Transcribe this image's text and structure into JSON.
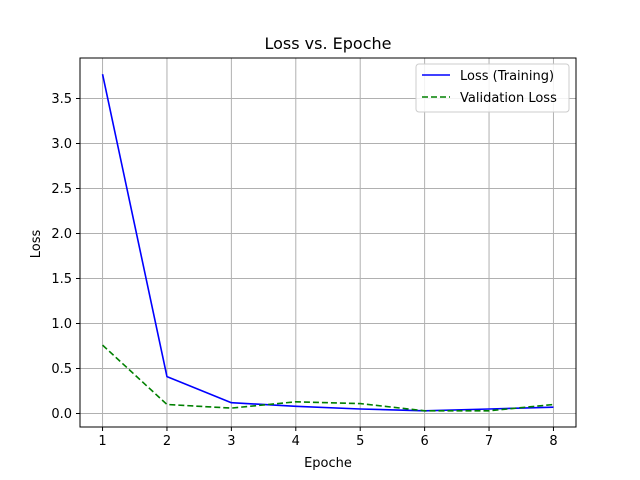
{
  "chart_data": {
    "type": "line",
    "title": "Loss vs. Epoche",
    "xlabel": "Epoche",
    "ylabel": "Loss",
    "x": [
      1,
      2,
      3,
      4,
      5,
      6,
      7,
      8
    ],
    "xlim": [
      0.65,
      8.35
    ],
    "ylim": [
      -0.15,
      3.95
    ],
    "xticks": [
      1,
      2,
      3,
      4,
      5,
      6,
      7,
      8
    ],
    "yticks": [
      0.0,
      0.5,
      1.0,
      1.5,
      2.0,
      2.5,
      3.0,
      3.5
    ],
    "ytick_labels": [
      "0.0",
      "0.5",
      "1.0",
      "1.5",
      "2.0",
      "2.5",
      "3.0",
      "3.5"
    ],
    "grid": true,
    "legend_position": "top-right",
    "series": [
      {
        "name": "Loss (Training)",
        "values": [
          3.77,
          0.41,
          0.12,
          0.08,
          0.05,
          0.03,
          0.05,
          0.07
        ],
        "color": "#0000ff",
        "style": "solid"
      },
      {
        "name": "Validation Loss",
        "values": [
          0.76,
          0.1,
          0.06,
          0.13,
          0.11,
          0.03,
          0.03,
          0.1
        ],
        "color": "#008000",
        "style": "dashed"
      }
    ]
  }
}
